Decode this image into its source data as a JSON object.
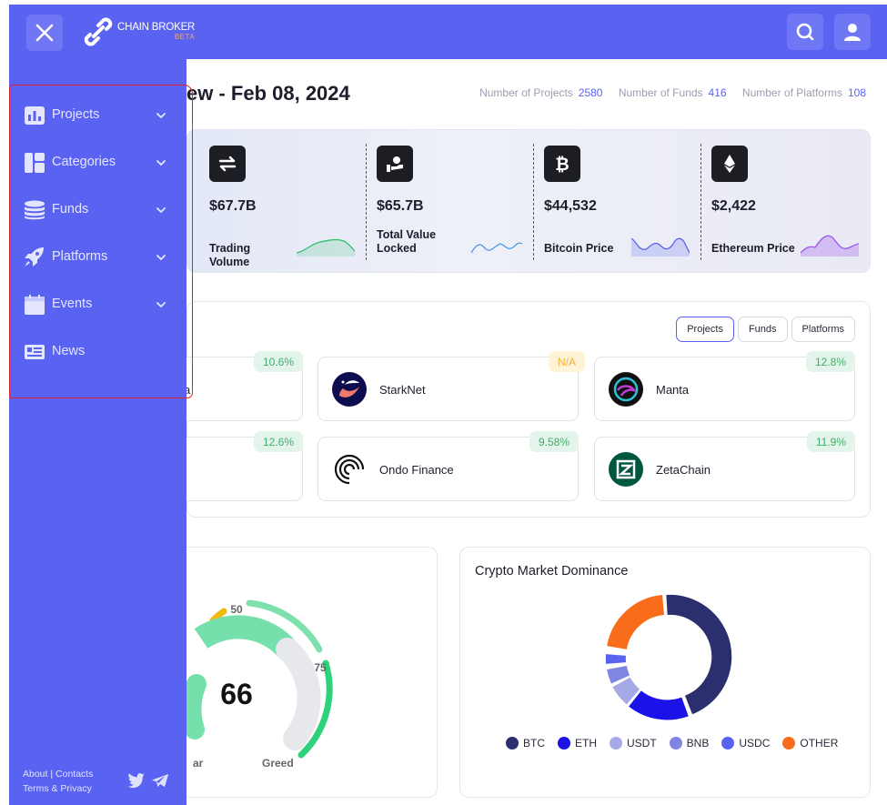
{
  "app": {
    "logo": {
      "name": "CHAIN BROKER",
      "tag": "BETA"
    }
  },
  "header": {
    "title": "ew - Feb 08, 2024",
    "stats": [
      {
        "label": "Number of Projects",
        "value": "2580"
      },
      {
        "label": "Number of Funds",
        "value": "416"
      },
      {
        "label": "Number of Platforms",
        "value": "108"
      }
    ]
  },
  "cards": [
    {
      "icon": "swap-arrows-icon",
      "amount": "$67.7B",
      "label": "Trading Volume",
      "spark_color": "#2fbf6f"
    },
    {
      "icon": "hand-coin-icon",
      "amount": "$65.7B",
      "label": "Total Value Locked",
      "spark_color": "#4a9bf0"
    },
    {
      "icon": "bitcoin-icon",
      "amount": "$44,532",
      "label": "Bitcoin Price",
      "spark_color": "#5a63f1"
    },
    {
      "icon": "ethereum-icon",
      "amount": "$2,422",
      "label": "Ethereum Price",
      "spark_color": "#9b55f0"
    }
  ],
  "trending": {
    "tabs": [
      "Projects",
      "Funds",
      "Platforms"
    ],
    "active_tab": "Projects",
    "items": [
      {
        "name": "a",
        "pct": "10.6%"
      },
      {
        "name": "StarkNet",
        "pct": "N/A"
      },
      {
        "name": "Manta",
        "pct": "12.8%"
      },
      {
        "name": "",
        "pct": "12.6%"
      },
      {
        "name": "Ondo Finance",
        "pct": "9.58%"
      },
      {
        "name": "ZetaChain",
        "pct": "11.9%"
      }
    ]
  },
  "gauge": {
    "value": "66",
    "ticks": [
      "50",
      "75"
    ],
    "labels": [
      "ar",
      "Greed"
    ]
  },
  "dominance": {
    "title": "Crypto Market Dominance",
    "legend": [
      {
        "name": "BTC",
        "color": "#2b2f6e"
      },
      {
        "name": "ETH",
        "color": "#1a12e6"
      },
      {
        "name": "USDT",
        "color": "#a5a9e6"
      },
      {
        "name": "BNB",
        "color": "#7f85e3"
      },
      {
        "name": "USDC",
        "color": "#5a63f1"
      },
      {
        "name": "OTHER",
        "color": "#f96d1a"
      }
    ]
  },
  "sidebar": {
    "items": [
      {
        "label": "Projects",
        "icon": "bar-chart-icon"
      },
      {
        "label": "Categories",
        "icon": "grid-icon"
      },
      {
        "label": "Funds",
        "icon": "coins-stack-icon"
      },
      {
        "label": "Platforms",
        "icon": "rocket-icon"
      },
      {
        "label": "Events",
        "icon": "calendar-icon"
      },
      {
        "label": "News",
        "icon": "news-icon"
      }
    ],
    "footer": {
      "about": "About",
      "contacts": "Contacts",
      "terms": "Terms & Privacy",
      "sep": "|"
    }
  }
}
